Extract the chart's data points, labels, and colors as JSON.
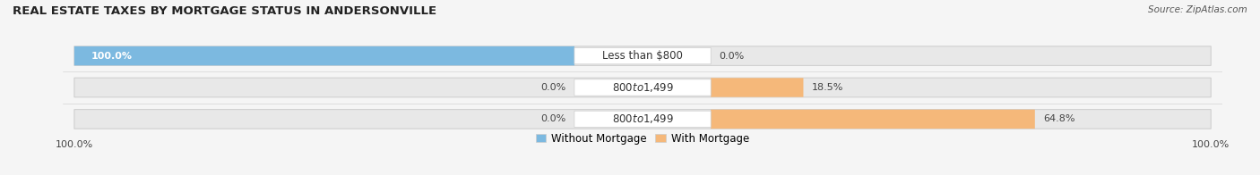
{
  "title": "REAL ESTATE TAXES BY MORTGAGE STATUS IN ANDERSONVILLE",
  "source": "Source: ZipAtlas.com",
  "rows": [
    {
      "label": "Less than $800",
      "without_pct": 100.0,
      "with_pct": 0.0
    },
    {
      "label": "$800 to $1,499",
      "without_pct": 0.0,
      "with_pct": 18.5
    },
    {
      "label": "$800 to $1,499",
      "without_pct": 0.0,
      "with_pct": 64.8
    }
  ],
  "max_val": 100.0,
  "color_without": "#7cb9e0",
  "color_with": "#f5b87a",
  "color_bg_bar": "#e8e8e8",
  "color_bg_fig": "#f5f5f5",
  "color_label_box": "#ffffff",
  "bar_height": 0.58,
  "font_size_title": 9.5,
  "font_size_labels": 8.5,
  "font_size_pct": 8,
  "font_size_legend": 8.5,
  "font_size_axis": 8,
  "legend_labels": [
    "Without Mortgage",
    "With Mortgage"
  ],
  "title_color": "#222222",
  "source_color": "#555555",
  "pct_color_inside": "#ffffff",
  "pct_color_outside": "#444444"
}
